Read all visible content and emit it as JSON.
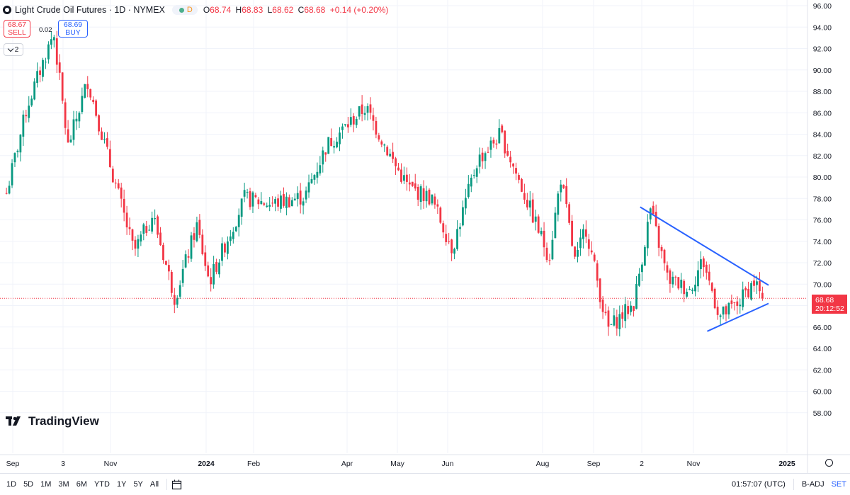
{
  "header": {
    "symbol": "Light Crude Oil Futures · 1D · NYMEX",
    "badge": "D",
    "ohlc": [
      {
        "k": "O",
        "v": "68.74"
      },
      {
        "k": "H",
        "v": "68.83"
      },
      {
        "k": "L",
        "v": "68.62"
      },
      {
        "k": "C",
        "v": "68.68"
      },
      {
        "k": "",
        "v": "+0.14 (+0.20%)"
      }
    ]
  },
  "trade": {
    "sell_price": "68.67",
    "sell_label": "SELL",
    "buy_price": "68.69",
    "buy_label": "BUY",
    "spread": "0.02"
  },
  "indicator_count": "2",
  "brand": "TradingView",
  "last_price": {
    "value": "68.68",
    "countdown": "20:12:52"
  },
  "bottom_toolbar": {
    "ranges": [
      "1D",
      "5D",
      "1M",
      "3M",
      "6M",
      "YTD",
      "1Y",
      "5Y",
      "All"
    ],
    "time": "01:57:07 (UTC)",
    "adj": "B-ADJ",
    "set": "SET"
  },
  "colors": {
    "up": "#089981",
    "down": "#f23645",
    "trendline": "#2962ff"
  },
  "icons": [
    "calendar-range-icon",
    "gear-icon",
    "chevron-down-icon",
    "tradingview-logo-icon"
  ],
  "chart_data": {
    "type": "candlestick",
    "ylim": [
      56,
      96
    ],
    "y_ticks": [
      "96.00",
      "94.00",
      "92.00",
      "90.00",
      "88.00",
      "86.00",
      "84.00",
      "82.00",
      "80.00",
      "78.00",
      "76.00",
      "74.00",
      "72.00",
      "70.00",
      "68.00",
      "66.00",
      "64.00",
      "62.00",
      "60.00",
      "58.00"
    ],
    "x_ticks": [
      "Sep",
      "3",
      "Nov",
      "2024",
      "Feb",
      "Apr",
      "May",
      "Jun",
      "Aug",
      "Sep",
      "2",
      "Nov",
      "2025"
    ],
    "price_path": [
      [
        "Aug 28 2023",
        78.5
      ],
      [
        "Sep 10 2023",
        86.5
      ],
      [
        "Sep 27 2023",
        93.5
      ],
      [
        "Oct 6 2023",
        82.8
      ],
      [
        "Oct 18 2023",
        89.0
      ],
      [
        "Nov 1 2023",
        81.0
      ],
      [
        "Nov 16 2023",
        73.0
      ],
      [
        "Nov 28 2023",
        76.5
      ],
      [
        "Dec 12 2023",
        68.7
      ],
      [
        "Dec 26 2023",
        75.5
      ],
      [
        "Jan 3 2024",
        70.2
      ],
      [
        "Jan 26 2024",
        78.0
      ],
      [
        "Feb 13 2024",
        77.5
      ],
      [
        "Mar 5 2024",
        78.2
      ],
      [
        "Mar 19 2024",
        83.0
      ],
      [
        "Apr 12 2024",
        86.5
      ],
      [
        "Apr 30 2024",
        81.0
      ],
      [
        "May 8 2024",
        79.0
      ],
      [
        "May 22 2024",
        78.0
      ],
      [
        "Jun 4 2024",
        73.3
      ],
      [
        "Jun 20 2024",
        81.5
      ],
      [
        "Jul 5 2024",
        84.0
      ],
      [
        "Jul 24 2024",
        77.0
      ],
      [
        "Aug 5 2024",
        72.5
      ],
      [
        "Aug 12 2024",
        80.0
      ],
      [
        "Aug 21 2024",
        71.8
      ],
      [
        "Aug 27 2024",
        75.5
      ],
      [
        "Sep 10 2024",
        65.8
      ],
      [
        "Sep 27 2024",
        68.2
      ],
      [
        "Oct 7 2024",
        77.0
      ],
      [
        "Oct 17 2024",
        70.5
      ],
      [
        "Oct 30 2024",
        69.5
      ],
      [
        "Nov 7 2024",
        72.3
      ],
      [
        "Nov 18 2024",
        67.0
      ],
      [
        "Nov 29 2024",
        68.0
      ],
      [
        "Dec 4 2024",
        69.0
      ],
      [
        "Dec 11 2024",
        70.3
      ],
      [
        "Dec 16 2024",
        68.68
      ]
    ],
    "trendlines": [
      {
        "name": "upper",
        "from": [
          "Oct 1 2024",
          77.2
        ],
        "to": [
          "Dec 20 2024",
          69.9
        ]
      },
      {
        "name": "lower",
        "from": [
          "Nov 10 2024",
          65.6
        ],
        "to": [
          "Dec 20 2024",
          68.2
        ]
      }
    ],
    "last_price_line": 68.68
  }
}
